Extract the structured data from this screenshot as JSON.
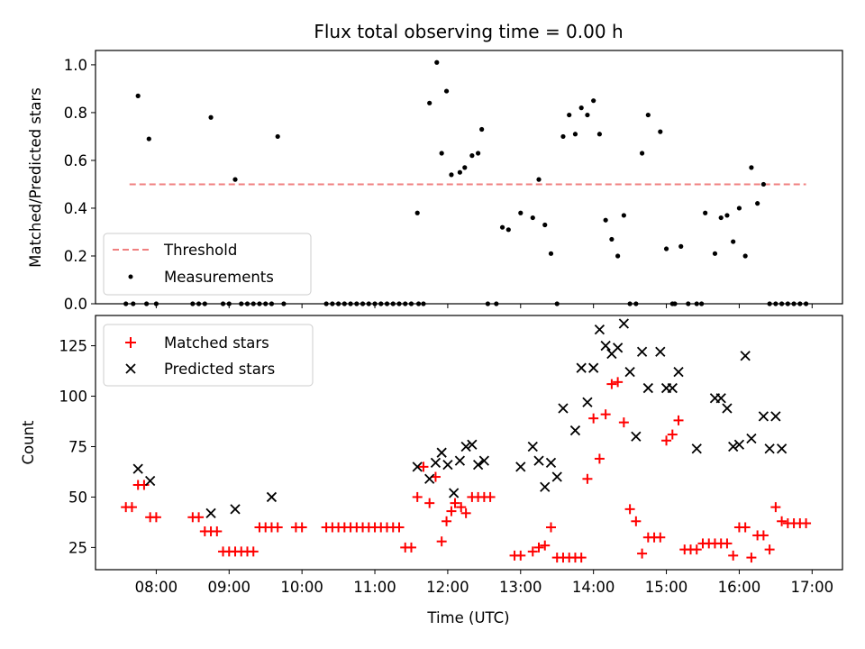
{
  "chart_data": [
    {
      "type": "scatter",
      "title": "Flux total observing time = 0.00 h",
      "xlabel": "",
      "ylabel": "Matched/Predicted stars",
      "xlim": [
        "07:10",
        "17:25"
      ],
      "ylim": [
        0,
        1.06
      ],
      "yticks": [
        0.0,
        0.2,
        0.4,
        0.6,
        0.8,
        1.0
      ],
      "ytick_labels": [
        "0.0",
        "0.2",
        "0.4",
        "0.6",
        "0.8",
        "1.0"
      ],
      "grid": false,
      "legend": "lower-left",
      "series": [
        {
          "name": "Threshold",
          "kind": "dashed-line",
          "color": "#f08080",
          "x": [
            "07:38",
            "16:55"
          ],
          "y": [
            0.5,
            0.5
          ]
        },
        {
          "name": "Measurements",
          "kind": "dots",
          "color": "#000000",
          "x": [
            "07:35",
            "07:41",
            "07:45",
            "07:52",
            "07:54",
            "08:00",
            "08:30",
            "08:35",
            "08:40",
            "08:45",
            "08:55",
            "09:00",
            "09:05",
            "09:10",
            "09:15",
            "09:20",
            "09:25",
            "09:30",
            "09:35",
            "09:40",
            "09:45",
            "10:20",
            "10:25",
            "10:30",
            "10:35",
            "10:40",
            "10:45",
            "10:50",
            "10:55",
            "11:00",
            "11:05",
            "11:10",
            "11:15",
            "11:20",
            "11:25",
            "11:30",
            "11:35",
            "11:36",
            "11:40",
            "11:45",
            "11:51",
            "11:55",
            "11:59",
            "12:03",
            "12:10",
            "12:14",
            "12:20",
            "12:25",
            "12:28",
            "12:33",
            "12:40",
            "12:45",
            "12:50",
            "13:00",
            "13:10",
            "13:15",
            "13:20",
            "13:25",
            "13:30",
            "13:35",
            "13:40",
            "13:45",
            "13:50",
            "13:55",
            "14:00",
            "14:05",
            "14:10",
            "14:15",
            "14:20",
            "14:25",
            "14:30",
            "14:35",
            "14:40",
            "14:45",
            "14:55",
            "15:00",
            "15:05",
            "15:07",
            "15:12",
            "15:18",
            "15:25",
            "15:29",
            "15:32",
            "15:40",
            "15:45",
            "15:50",
            "15:55",
            "16:00",
            "16:05",
            "16:10",
            "16:15",
            "16:20",
            "16:25",
            "16:30",
            "16:35",
            "16:40",
            "16:45",
            "16:50",
            "16:55"
          ],
          "y": [
            0.0,
            0.0,
            0.87,
            0.0,
            0.69,
            0.0,
            0.0,
            0.0,
            0.0,
            0.78,
            0.0,
            0.0,
            0.52,
            0.0,
            0.0,
            0.0,
            0.0,
            0.0,
            0.0,
            0.7,
            0.0,
            0.0,
            0.0,
            0.0,
            0.0,
            0.0,
            0.0,
            0.0,
            0.0,
            0.0,
            0.0,
            0.0,
            0.0,
            0.0,
            0.0,
            0.0,
            0.38,
            0.0,
            0.0,
            0.84,
            1.01,
            0.63,
            0.89,
            0.54,
            0.55,
            0.57,
            0.62,
            0.63,
            0.73,
            0.0,
            0.0,
            0.32,
            0.31,
            0.38,
            0.36,
            0.52,
            0.33,
            0.21,
            0.0,
            0.7,
            0.79,
            0.71,
            0.82,
            0.79,
            0.85,
            0.71,
            0.35,
            0.27,
            0.2,
            0.37,
            0.0,
            0.0,
            0.63,
            0.79,
            0.72,
            0.23,
            0.0,
            0.0,
            0.24,
            0.0,
            0.0,
            0.0,
            0.38,
            0.21,
            0.36,
            0.37,
            0.26,
            0.4,
            0.2,
            0.57,
            0.42,
            0.5,
            0.0,
            0.0,
            0.0,
            0.0,
            0.0,
            0.0,
            0.0
          ]
        }
      ]
    },
    {
      "type": "scatter",
      "title": "",
      "xlabel": "Time (UTC)",
      "ylabel": "Count",
      "xlim": [
        "07:10",
        "17:25"
      ],
      "ylim": [
        14,
        140
      ],
      "yticks": [
        25,
        50,
        75,
        100,
        125
      ],
      "ytick_labels": [
        "25",
        "50",
        "75",
        "100",
        "125"
      ],
      "xticks": [
        "08:00",
        "09:00",
        "10:00",
        "11:00",
        "12:00",
        "13:00",
        "14:00",
        "15:00",
        "16:00",
        "17:00"
      ],
      "xtick_labels": [
        "08:00",
        "09:00",
        "10:00",
        "11:00",
        "12:00",
        "13:00",
        "14:00",
        "15:00",
        "16:00",
        "17:00"
      ],
      "grid": false,
      "legend": "upper-left",
      "series": [
        {
          "name": "Matched stars",
          "marker": "plus",
          "color": "#ff0000",
          "x": [
            "07:35",
            "07:40",
            "07:45",
            "07:50",
            "07:55",
            "08:00",
            "08:30",
            "08:35",
            "08:40",
            "08:45",
            "08:50",
            "08:55",
            "09:00",
            "09:05",
            "09:10",
            "09:15",
            "09:20",
            "09:25",
            "09:30",
            "09:35",
            "09:40",
            "09:55",
            "10:00",
            "10:20",
            "10:25",
            "10:30",
            "10:35",
            "10:40",
            "10:45",
            "10:50",
            "10:55",
            "11:00",
            "11:05",
            "11:10",
            "11:15",
            "11:20",
            "11:25",
            "11:30",
            "11:35",
            "11:40",
            "11:45",
            "11:50",
            "11:55",
            "11:59",
            "12:03",
            "12:06",
            "12:11",
            "12:15",
            "12:20",
            "12:25",
            "12:30",
            "12:35",
            "12:55",
            "13:00",
            "13:10",
            "13:15",
            "13:20",
            "13:25",
            "13:30",
            "13:35",
            "13:40",
            "13:45",
            "13:50",
            "13:55",
            "14:00",
            "14:05",
            "14:10",
            "14:15",
            "14:20",
            "14:25",
            "14:30",
            "14:35",
            "14:40",
            "14:45",
            "14:50",
            "14:55",
            "15:00",
            "15:05",
            "15:10",
            "15:15",
            "15:20",
            "15:25",
            "15:30",
            "15:35",
            "15:40",
            "15:45",
            "15:50",
            "15:55",
            "16:00",
            "16:05",
            "16:10",
            "16:15",
            "16:20",
            "16:25",
            "16:30",
            "16:35",
            "16:40",
            "16:45",
            "16:50",
            "16:55"
          ],
          "y": [
            45,
            45,
            56,
            56,
            40,
            40,
            40,
            40,
            33,
            33,
            33,
            23,
            23,
            23,
            23,
            23,
            23,
            35,
            35,
            35,
            35,
            35,
            35,
            35,
            35,
            35,
            35,
            35,
            35,
            35,
            35,
            35,
            35,
            35,
            35,
            35,
            25,
            25,
            50,
            65,
            47,
            60,
            28,
            38,
            43,
            47,
            45,
            42,
            50,
            50,
            50,
            50,
            21,
            21,
            23,
            25,
            26,
            35,
            20,
            20,
            20,
            20,
            20,
            59,
            89,
            69,
            91,
            106,
            107,
            87,
            44,
            38,
            22,
            30,
            30,
            30,
            78,
            81,
            88,
            24,
            24,
            24,
            27,
            27,
            27,
            27,
            27,
            21,
            35,
            35,
            20,
            31,
            31,
            24,
            45,
            38,
            37,
            37,
            37,
            37
          ]
        },
        {
          "name": "Predicted stars",
          "marker": "x",
          "color": "#000000",
          "x": [
            "07:45",
            "07:55",
            "08:45",
            "09:05",
            "09:35",
            "11:35",
            "11:45",
            "11:50",
            "11:55",
            "12:00",
            "12:05",
            "12:10",
            "12:15",
            "12:20",
            "12:25",
            "12:30",
            "13:00",
            "13:10",
            "13:15",
            "13:20",
            "13:25",
            "13:30",
            "13:35",
            "13:45",
            "13:50",
            "13:55",
            "14:00",
            "14:05",
            "14:10",
            "14:15",
            "14:20",
            "14:25",
            "14:30",
            "14:35",
            "14:40",
            "14:45",
            "14:55",
            "15:00",
            "15:05",
            "15:10",
            "15:25",
            "15:40",
            "15:45",
            "15:50",
            "15:55",
            "16:00",
            "16:05",
            "16:10",
            "16:20",
            "16:25",
            "16:30",
            "16:35"
          ],
          "y": [
            64,
            58,
            42,
            44,
            50,
            65,
            59,
            67,
            72,
            66,
            52,
            68,
            75,
            76,
            66,
            68,
            65,
            75,
            68,
            55,
            67,
            60,
            94,
            83,
            114,
            97,
            114,
            133,
            125,
            121,
            124,
            136,
            112,
            80,
            122,
            104,
            122,
            104,
            104,
            112,
            74,
            99,
            99,
            94,
            75,
            76,
            120,
            79,
            90,
            74,
            90,
            74
          ]
        }
      ]
    }
  ]
}
